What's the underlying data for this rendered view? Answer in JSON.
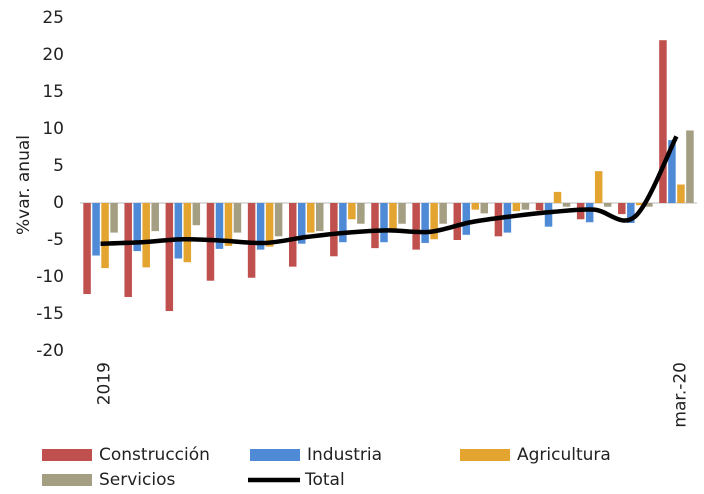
{
  "chart_data": {
    "type": "bar",
    "y_axis_label": "%var. anual",
    "categories": [
      "2019",
      null,
      null,
      null,
      null,
      null,
      null,
      null,
      null,
      null,
      null,
      null,
      null,
      null,
      "mar.-20"
    ],
    "series": [
      {
        "name": "Construcción",
        "color": "#c0504d",
        "values": [
          -12.3,
          -12.7,
          -14.6,
          -10.5,
          -10.1,
          -8.6,
          -7.2,
          -6.1,
          -6.3,
          -5.0,
          -4.5,
          -1.0,
          -2.2,
          -1.5,
          22.0
        ]
      },
      {
        "name": "Industria",
        "color": "#4f8ad6",
        "values": [
          -7.1,
          -6.5,
          -7.5,
          -6.2,
          -6.3,
          -5.5,
          -5.3,
          -5.3,
          -5.4,
          -4.3,
          -4.0,
          -3.2,
          -2.6,
          -2.7,
          8.5
        ]
      },
      {
        "name": "Agricultura",
        "color": "#e3a430",
        "values": [
          -8.8,
          -8.7,
          -8.0,
          -5.8,
          -5.9,
          -4.0,
          -2.2,
          -3.5,
          -4.9,
          -0.9,
          -1.1,
          1.5,
          4.3,
          -0.3,
          2.5
        ]
      },
      {
        "name": "Servicios",
        "color": "#a49e82",
        "values": [
          -4.0,
          -3.8,
          -3.0,
          -4.0,
          -4.5,
          -3.8,
          -2.8,
          -2.8,
          -2.8,
          -1.4,
          -0.9,
          -0.5,
          -0.5,
          -0.5,
          9.8
        ]
      },
      {
        "name": "Total",
        "color": "#000000",
        "type": "line",
        "values": [
          -5.5,
          -5.3,
          -4.9,
          -5.1,
          -5.4,
          -4.6,
          -4.0,
          -3.7,
          -3.9,
          -2.6,
          -1.8,
          -1.2,
          -0.9,
          -1.8,
          9.0
        ]
      }
    ],
    "ylim": [
      -20,
      25
    ],
    "yticks": [
      -20,
      -15,
      -10,
      -5,
      0,
      5,
      10,
      15,
      20,
      25
    ],
    "grid": false
  }
}
